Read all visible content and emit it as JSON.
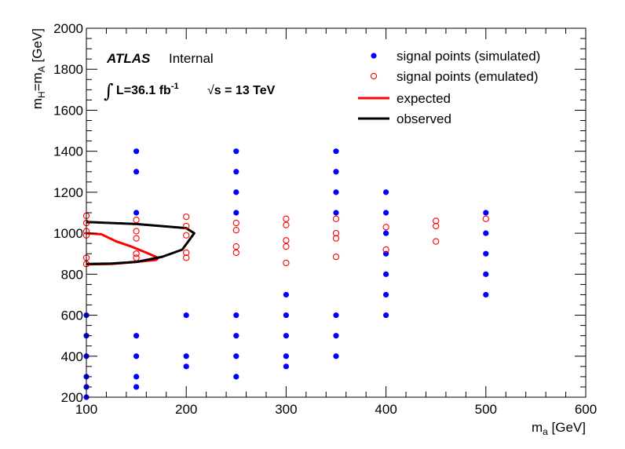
{
  "chart_data": {
    "type": "scatter",
    "xlabel_main": "m",
    "xlabel_sub": "a",
    "xlabel_unit": " [GeV]",
    "ylabel_main": "m",
    "ylabel_sub1": "H",
    "ylabel_eq": "=m",
    "ylabel_sub2": "A",
    "ylabel_unit": " [GeV]",
    "xlim": [
      100,
      600
    ],
    "ylim": [
      200,
      2000
    ],
    "xticks": [
      100,
      200,
      300,
      400,
      500,
      600
    ],
    "yticks": [
      200,
      400,
      600,
      800,
      1000,
      1200,
      1400,
      1600,
      1800,
      2000
    ],
    "grid": false,
    "legend_position": "top-right",
    "atlas_label": "ATLAS",
    "atlas_status": "Internal",
    "integral_symbol": "∫",
    "lumi_text": "L=36.1 fb",
    "lumi_exp": "-1",
    "sqrt_symbol": "√",
    "energy_text": "s = 13 TeV",
    "colors": {
      "simulated": "#0000ff",
      "emulated": "#ff0000",
      "expected": "#ff0000",
      "observed": "#000000"
    },
    "series": [
      {
        "name": "signal points (simulated)",
        "style": "filled-marker",
        "points": [
          [
            100,
            200
          ],
          [
            100,
            250
          ],
          [
            100,
            300
          ],
          [
            100,
            400
          ],
          [
            100,
            500
          ],
          [
            100,
            600
          ],
          [
            150,
            250
          ],
          [
            150,
            300
          ],
          [
            150,
            400
          ],
          [
            150,
            500
          ],
          [
            150,
            1100
          ],
          [
            150,
            1300
          ],
          [
            150,
            1400
          ],
          [
            200,
            350
          ],
          [
            200,
            400
          ],
          [
            200,
            600
          ],
          [
            250,
            300
          ],
          [
            250,
            400
          ],
          [
            250,
            500
          ],
          [
            250,
            600
          ],
          [
            250,
            1100
          ],
          [
            250,
            1200
          ],
          [
            250,
            1300
          ],
          [
            250,
            1400
          ],
          [
            300,
            350
          ],
          [
            300,
            400
          ],
          [
            300,
            500
          ],
          [
            300,
            600
          ],
          [
            300,
            700
          ],
          [
            350,
            400
          ],
          [
            350,
            500
          ],
          [
            350,
            600
          ],
          [
            350,
            1100
          ],
          [
            350,
            1200
          ],
          [
            350,
            1300
          ],
          [
            350,
            1400
          ],
          [
            400,
            600
          ],
          [
            400,
            700
          ],
          [
            400,
            800
          ],
          [
            400,
            900
          ],
          [
            400,
            1000
          ],
          [
            400,
            1100
          ],
          [
            400,
            1200
          ],
          [
            500,
            700
          ],
          [
            500,
            800
          ],
          [
            500,
            900
          ],
          [
            500,
            1000
          ],
          [
            500,
            1100
          ]
        ]
      },
      {
        "name": "signal points (emulated)",
        "style": "open-marker",
        "points": [
          [
            100,
            850
          ],
          [
            100,
            880
          ],
          [
            100,
            990
          ],
          [
            100,
            1010
          ],
          [
            100,
            1050
          ],
          [
            100,
            1085
          ],
          [
            150,
            880
          ],
          [
            150,
            900
          ],
          [
            150,
            975
          ],
          [
            150,
            1010
          ],
          [
            150,
            1065
          ],
          [
            200,
            880
          ],
          [
            200,
            905
          ],
          [
            200,
            990
          ],
          [
            200,
            1035
          ],
          [
            200,
            1080
          ],
          [
            250,
            905
          ],
          [
            250,
            935
          ],
          [
            250,
            1015
          ],
          [
            250,
            1050
          ],
          [
            300,
            855
          ],
          [
            300,
            935
          ],
          [
            300,
            965
          ],
          [
            300,
            1040
          ],
          [
            300,
            1070
          ],
          [
            350,
            885
          ],
          [
            350,
            975
          ],
          [
            350,
            1000
          ],
          [
            350,
            1070
          ],
          [
            400,
            920
          ],
          [
            400,
            1030
          ],
          [
            450,
            960
          ],
          [
            450,
            1035
          ],
          [
            450,
            1060
          ],
          [
            500,
            1070
          ]
        ]
      },
      {
        "name": "expected",
        "style": "line",
        "points": [
          [
            100,
            1000
          ],
          [
            115,
            995
          ],
          [
            130,
            960
          ],
          [
            145,
            935
          ],
          [
            160,
            905
          ],
          [
            172,
            880
          ],
          [
            170,
            870
          ],
          [
            150,
            860
          ],
          [
            125,
            850
          ],
          [
            100,
            848
          ]
        ]
      },
      {
        "name": "observed",
        "style": "line",
        "points": [
          [
            100,
            1055
          ],
          [
            150,
            1045
          ],
          [
            200,
            1025
          ],
          [
            208,
            1000
          ],
          [
            196,
            920
          ],
          [
            176,
            885
          ],
          [
            150,
            860
          ],
          [
            125,
            852
          ],
          [
            100,
            850
          ]
        ]
      }
    ]
  }
}
